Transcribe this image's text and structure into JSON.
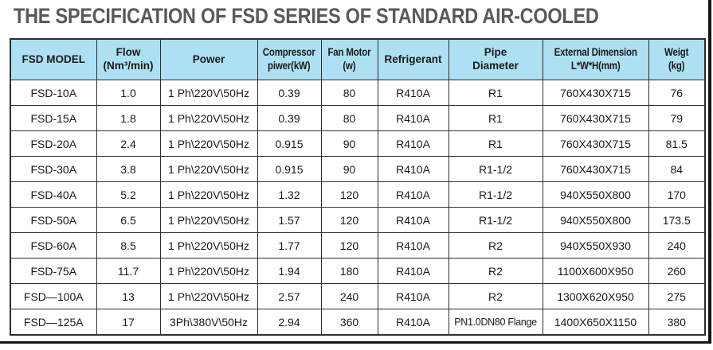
{
  "title": "THE SPECIFICATION OF FSD SERIES OF STANDARD AIR-COOLED",
  "colors": {
    "header_bg": "#ace0f2",
    "title_text": "#58595b",
    "grid_line": "#2e2e2e"
  },
  "table": {
    "headers": [
      "FSD MODEL",
      "Flow\n(Nm³/min)",
      "Power",
      "Compressor\npiwer(kW)",
      "Fan Motor\n(w)",
      "Refrigerant",
      "Pipe\nDiameter",
      "External Dimension\nL*W*H(mm)",
      "Weigt\n(kg)"
    ],
    "rows": [
      [
        "FSD-10A",
        "1.0",
        "1 Ph\\220V\\50Hz",
        "0.39",
        "80",
        "R410A",
        "R1",
        "760X430X715",
        "76"
      ],
      [
        "FSD-15A",
        "1.8",
        "1 Ph\\220V\\50Hz",
        "0.39",
        "80",
        "R410A",
        "R1",
        "760X430X715",
        "79"
      ],
      [
        "FSD-20A",
        "2.4",
        "1 Ph\\220V\\50Hz",
        "0.915",
        "90",
        "R410A",
        "R1",
        "760X430X715",
        "81.5"
      ],
      [
        "FSD-30A",
        "3.8",
        "1 Ph\\220V\\50Hz",
        "0.915",
        "90",
        "R410A",
        "R1-1/2",
        "760X430X715",
        "84"
      ],
      [
        "FSD-40A",
        "5.2",
        "1 Ph\\220V\\50Hz",
        "1.32",
        "120",
        "R410A",
        "R1-1/2",
        "940X550X800",
        "170"
      ],
      [
        "FSD-50A",
        "6.5",
        "1 Ph\\220V\\50Hz",
        "1.57",
        "120",
        "R410A",
        "R1-1/2",
        "940X550X800",
        "173.5"
      ],
      [
        "FSD-60A",
        "8.5",
        "1 Ph\\220V\\50Hz",
        "1.77",
        "120",
        "R410A",
        "R2",
        "940X550X930",
        "240"
      ],
      [
        "FSD-75A",
        "11.7",
        "1 Ph\\220V\\50Hz",
        "1.94",
        "180",
        "R410A",
        "R2",
        "1100X600X950",
        "260"
      ],
      [
        "FSD—100A",
        "13",
        "1 Ph\\220V\\50Hz",
        "2.57",
        "240",
        "R410A",
        "R2",
        "1300X620X950",
        "275"
      ],
      [
        "FSD—125A",
        "17",
        "3Ph\\380V\\50Hz",
        "2.94",
        "360",
        "R410A",
        "PN1.0DN80 Flange",
        "1400X650X1150",
        "380"
      ]
    ]
  }
}
